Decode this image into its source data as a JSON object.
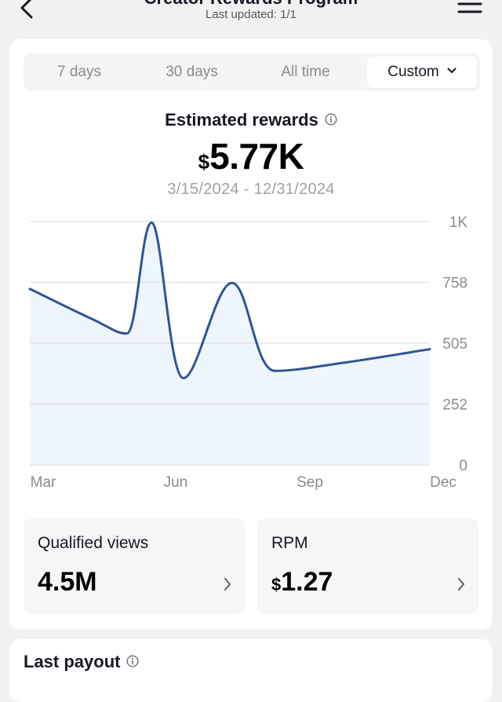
{
  "header": {
    "title": "Creator Rewards Program",
    "subtitle": "Last updated: 1/1"
  },
  "tabs": [
    {
      "label": "7 days",
      "active": false
    },
    {
      "label": "30 days",
      "active": false
    },
    {
      "label": "All time",
      "active": false
    },
    {
      "label": "Custom",
      "active": true
    }
  ],
  "metric": {
    "title": "Estimated rewards",
    "currency": "$",
    "value": "5.77K",
    "date_range": "3/15/2024 - 12/31/2024"
  },
  "chart_data": {
    "type": "area",
    "y_ticks": [
      "1K",
      "758",
      "505",
      "252",
      "0"
    ],
    "x_ticks": [
      "Mar",
      "Jun",
      "Sep",
      "Dec"
    ],
    "ylim": [
      0,
      1010
    ],
    "grid": true,
    "points": [
      {
        "x": "2024-03-15",
        "y": 730
      },
      {
        "x": "2024-04-15",
        "y": 605
      },
      {
        "x": "2024-05-10",
        "y": 545
      },
      {
        "x": "2024-05-28",
        "y": 1005
      },
      {
        "x": "2024-06-20",
        "y": 360
      },
      {
        "x": "2024-07-25",
        "y": 755
      },
      {
        "x": "2024-08-25",
        "y": 390
      },
      {
        "x": "2024-10-15",
        "y": 425
      },
      {
        "x": "2024-12-31",
        "y": 480
      }
    ],
    "line_color": "#2f5596",
    "fill_color": "#eef5fc"
  },
  "stats": [
    {
      "label": "Qualified views",
      "currency": "",
      "value": "4.5M"
    },
    {
      "label": "RPM",
      "currency": "$",
      "value": "1.27"
    }
  ],
  "payout": {
    "title": "Last payout"
  }
}
